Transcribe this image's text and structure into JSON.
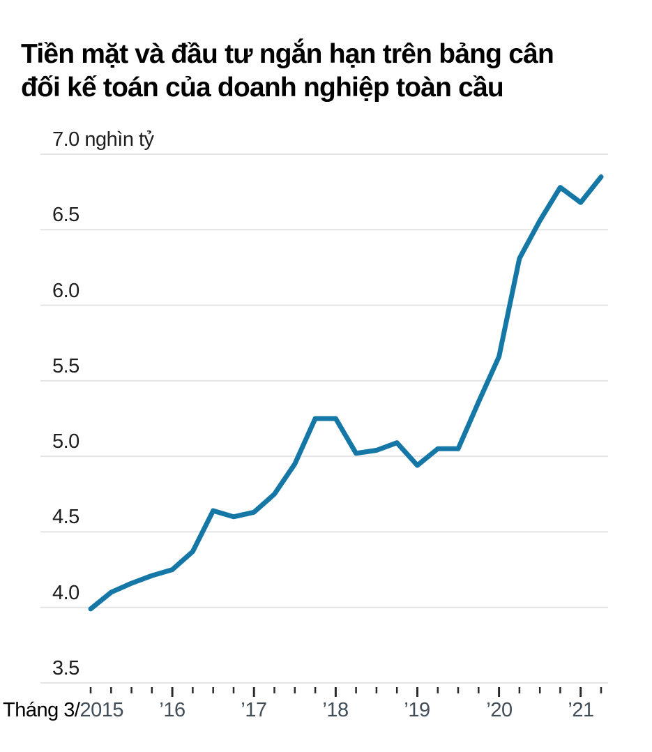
{
  "title": {
    "line1": "Tiền mặt và đầu tư ngắn hạn trên bảng cân",
    "line2": "đối kế toán của doanh nghiệp toàn cầu"
  },
  "chart_data": {
    "type": "line",
    "title": "Tiền mặt và đầu tư ngắn hạn trên bảng cân đối kế toán của doanh nghiệp toàn cầu",
    "unit": "nghìn tỷ",
    "x_quarters": [
      "2015-03",
      "2015-06",
      "2015-09",
      "2015-12",
      "2016-03",
      "2016-06",
      "2016-09",
      "2016-12",
      "2017-03",
      "2017-06",
      "2017-09",
      "2017-12",
      "2018-03",
      "2018-06",
      "2018-09",
      "2018-12",
      "2019-03",
      "2019-06",
      "2019-09",
      "2019-12",
      "2020-03",
      "2020-06",
      "2020-09",
      "2020-12",
      "2021-03",
      "2021-06"
    ],
    "values": [
      3.99,
      4.1,
      4.16,
      4.21,
      4.25,
      4.37,
      4.64,
      4.6,
      4.63,
      4.75,
      4.95,
      5.25,
      5.25,
      5.02,
      5.04,
      5.09,
      4.94,
      5.05,
      5.05,
      5.36,
      5.66,
      6.31,
      6.56,
      6.78,
      6.68,
      6.85
    ],
    "ylim": [
      3.5,
      7.0
    ],
    "grid": "horizontal-only",
    "legend": "none",
    "y_ticks": [
      {
        "value": 7.0,
        "label": "7.0 nghìn tỷ"
      },
      {
        "value": 6.5,
        "label": "6.5"
      },
      {
        "value": 6.0,
        "label": "6.0"
      },
      {
        "value": 5.5,
        "label": "5.5"
      },
      {
        "value": 5.0,
        "label": "5.0"
      },
      {
        "value": 4.5,
        "label": "4.5"
      },
      {
        "value": 4.0,
        "label": "4.0"
      },
      {
        "value": 3.5,
        "label": "3.5"
      }
    ],
    "x_axis": {
      "first_label_prefix": "Tháng 3/",
      "first_label_year": "2015",
      "year_labels": [
        {
          "i": 4,
          "label": "’16"
        },
        {
          "i": 8,
          "label": "’17"
        },
        {
          "i": 12,
          "label": "’18"
        },
        {
          "i": 16,
          "label": "’19"
        },
        {
          "i": 20,
          "label": "’20"
        },
        {
          "i": 24,
          "label": "’21"
        }
      ],
      "major_tick_indices": [
        4,
        8,
        12,
        16,
        20,
        24
      ]
    },
    "colors": {
      "line": "#1477a6",
      "grid": "#e4e4e4",
      "tick": "#2b2b2b",
      "year_label": "#414d57",
      "axis_text": "#1e1e1e",
      "title_text": "#000000"
    }
  }
}
